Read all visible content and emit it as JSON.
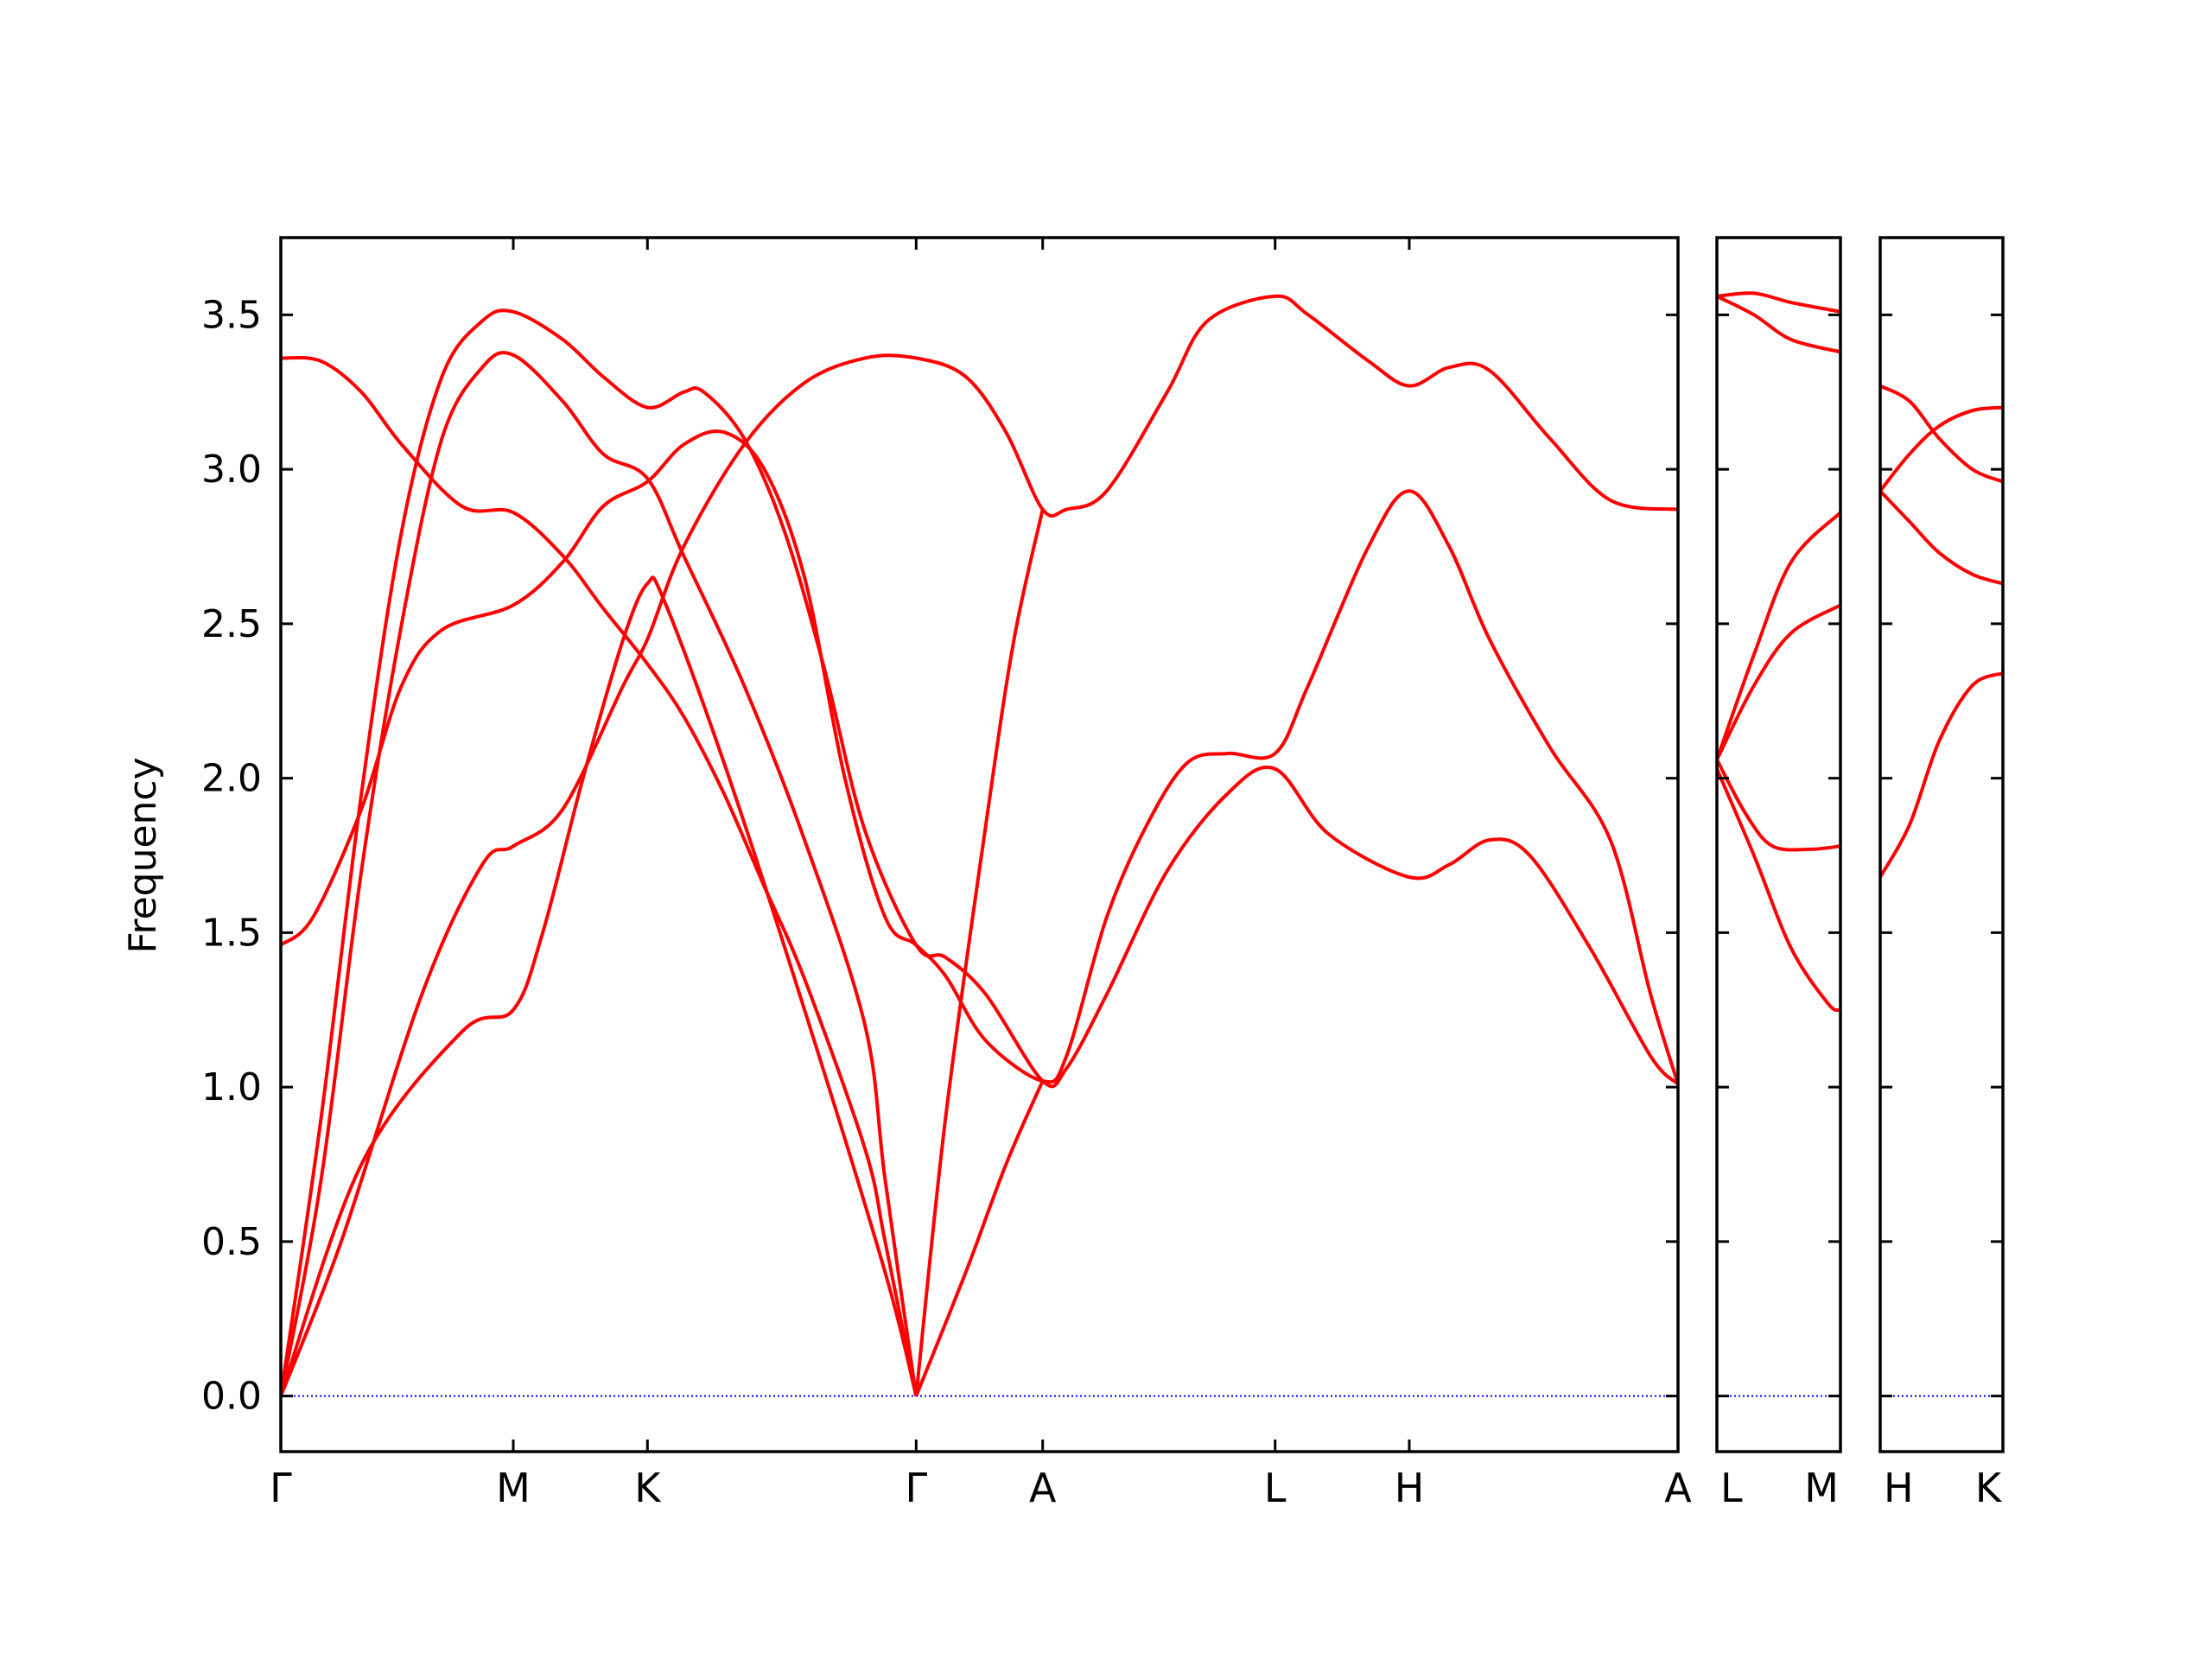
{
  "chart_data": {
    "type": "line",
    "ylabel": "Frequency",
    "ylim": [
      -0.18,
      3.75
    ],
    "y_ticks": [
      "0.0",
      "0.5",
      "1.0",
      "1.5",
      "2.0",
      "2.5",
      "3.0",
      "3.5"
    ],
    "grid": false,
    "legend": "none",
    "colors": {
      "bands": "#ff0000",
      "zero_line": "#0000ff",
      "axes": "#000000"
    },
    "panels": [
      {
        "labels": [
          "Γ",
          "M",
          "K",
          "Γ",
          "A",
          "L",
          "H",
          "A"
        ],
        "x": [
          0,
          0.577,
          0.91,
          1.577,
          1.891,
          2.468,
          2.801,
          3.468
        ],
        "series": [
          {
            "points": [
              [
                0,
                0
              ],
              [
                0.2,
                0.75
              ],
              [
                0.45,
                1.18
              ],
              [
                0.577,
                1.25
              ],
              [
                0.65,
                1.5
              ],
              [
                0.75,
                2.0
              ],
              [
                0.85,
                2.45
              ],
              [
                0.91,
                2.63
              ],
              [
                0.95,
                2.58
              ],
              [
                1.1,
                2.05
              ],
              [
                1.3,
                1.25
              ],
              [
                1.5,
                0.4
              ],
              [
                1.577,
                0
              ]
            ]
          },
          {
            "points": [
              [
                0,
                0
              ],
              [
                0.15,
                0.5
              ],
              [
                0.35,
                1.3
              ],
              [
                0.5,
                1.72
              ],
              [
                0.577,
                1.78
              ],
              [
                0.7,
                1.9
              ],
              [
                0.85,
                2.3
              ],
              [
                0.91,
                2.45
              ],
              [
                1.0,
                2.75
              ],
              [
                1.15,
                3.08
              ],
              [
                1.3,
                3.28
              ],
              [
                1.45,
                3.36
              ],
              [
                1.577,
                3.36
              ],
              [
                1.7,
                3.3
              ],
              [
                1.8,
                3.12
              ],
              [
                1.891,
                2.87
              ],
              [
                1.95,
                2.87
              ],
              [
                2.05,
                2.93
              ],
              [
                2.2,
                3.25
              ],
              [
                2.3,
                3.48
              ],
              [
                2.468,
                3.56
              ],
              [
                2.55,
                3.5
              ],
              [
                2.7,
                3.35
              ],
              [
                2.801,
                3.27
              ],
              [
                2.9,
                3.33
              ],
              [
                3.0,
                3.32
              ],
              [
                3.15,
                3.1
              ],
              [
                3.3,
                2.9
              ],
              [
                3.468,
                2.87
              ]
            ]
          },
          {
            "points": [
              [
                0,
                0
              ],
              [
                0.1,
                0.7
              ],
              [
                0.2,
                1.7
              ],
              [
                0.3,
                2.5
              ],
              [
                0.4,
                3.1
              ],
              [
                0.5,
                3.33
              ],
              [
                0.577,
                3.37
              ],
              [
                0.7,
                3.22
              ],
              [
                0.8,
                3.05
              ],
              [
                0.91,
                2.97
              ],
              [
                1.0,
                2.72
              ],
              [
                1.15,
                2.3
              ],
              [
                1.3,
                1.8
              ],
              [
                1.45,
                1.2
              ],
              [
                1.5,
                0.7
              ],
              [
                1.577,
                0
              ]
            ]
          },
          {
            "points": [
              [
                0,
                0
              ],
              [
                0.1,
                0.9
              ],
              [
                0.2,
                1.95
              ],
              [
                0.3,
                2.8
              ],
              [
                0.4,
                3.3
              ],
              [
                0.5,
                3.48
              ],
              [
                0.577,
                3.51
              ],
              [
                0.7,
                3.42
              ],
              [
                0.8,
                3.3
              ],
              [
                0.91,
                3.2
              ],
              [
                1.0,
                3.25
              ],
              [
                1.05,
                3.25
              ],
              [
                1.15,
                3.1
              ],
              [
                1.25,
                2.8
              ],
              [
                1.35,
                2.35
              ],
              [
                1.45,
                1.83
              ],
              [
                1.577,
                1.46
              ],
              [
                1.65,
                1.42
              ],
              [
                1.75,
                1.3
              ],
              [
                1.891,
                1.02
              ],
              [
                1.95,
                1.06
              ],
              [
                2.05,
                1.3
              ],
              [
                2.2,
                1.7
              ],
              [
                2.35,
                1.95
              ],
              [
                2.468,
                2.03
              ],
              [
                2.6,
                1.82
              ],
              [
                2.8,
                1.68
              ],
              [
                2.9,
                1.72
              ],
              [
                3.0,
                1.8
              ],
              [
                3.1,
                1.75
              ],
              [
                3.25,
                1.45
              ],
              [
                3.4,
                1.1
              ],
              [
                3.468,
                1.01
              ]
            ]
          },
          {
            "points": [
              [
                0,
                1.46
              ],
              [
                0.08,
                1.55
              ],
              [
                0.2,
                1.9
              ],
              [
                0.3,
                2.3
              ],
              [
                0.4,
                2.48
              ],
              [
                0.577,
                2.56
              ],
              [
                0.7,
                2.7
              ],
              [
                0.8,
                2.88
              ],
              [
                0.91,
                2.96
              ],
              [
                1.0,
                3.08
              ],
              [
                1.1,
                3.12
              ],
              [
                1.2,
                3.0
              ],
              [
                1.3,
                2.65
              ],
              [
                1.4,
                2.0
              ],
              [
                1.5,
                1.55
              ],
              [
                1.577,
                1.46
              ],
              [
                1.65,
                1.36
              ],
              [
                1.75,
                1.15
              ],
              [
                1.891,
                1.02
              ],
              [
                1.95,
                1.1
              ],
              [
                2.05,
                1.55
              ],
              [
                2.15,
                1.85
              ],
              [
                2.25,
                2.05
              ],
              [
                2.35,
                2.08
              ],
              [
                2.468,
                2.08
              ],
              [
                2.55,
                2.3
              ],
              [
                2.7,
                2.75
              ],
              [
                2.801,
                2.93
              ],
              [
                2.9,
                2.75
              ],
              [
                3.0,
                2.45
              ],
              [
                3.15,
                2.1
              ],
              [
                3.3,
                1.8
              ],
              [
                3.4,
                1.3
              ],
              [
                3.468,
                1.01
              ]
            ]
          },
          {
            "points": [
              [
                0,
                3.36
              ],
              [
                0.1,
                3.35
              ],
              [
                0.2,
                3.25
              ],
              [
                0.3,
                3.08
              ],
              [
                0.45,
                2.88
              ],
              [
                0.577,
                2.86
              ],
              [
                0.7,
                2.72
              ],
              [
                0.8,
                2.55
              ],
              [
                0.91,
                2.37
              ],
              [
                1.0,
                2.2
              ],
              [
                1.1,
                1.95
              ],
              [
                1.2,
                1.65
              ],
              [
                1.3,
                1.35
              ],
              [
                1.45,
                0.8
              ],
              [
                1.5,
                0.5
              ],
              [
                1.577,
                0
              ]
            ]
          },
          {
            "points": [
              [
                1.577,
                0
              ],
              [
                1.65,
                0.9
              ],
              [
                1.75,
                1.85
              ],
              [
                1.82,
                2.45
              ],
              [
                1.891,
                2.87
              ]
            ]
          },
          {
            "points": [
              [
                1.577,
                0
              ],
              [
                1.7,
                0.4
              ],
              [
                1.8,
                0.75
              ],
              [
                1.891,
                1.02
              ]
            ]
          }
        ]
      },
      {
        "labels": [
          "L",
          "M"
        ],
        "x": [
          0,
          0.333
        ],
        "series": [
          {
            "points": [
              [
                0,
                3.56
              ],
              [
                0.1,
                3.57
              ],
              [
                0.2,
                3.54
              ],
              [
                0.333,
                3.51
              ]
            ]
          },
          {
            "points": [
              [
                0,
                3.56
              ],
              [
                0.1,
                3.5
              ],
              [
                0.2,
                3.42
              ],
              [
                0.333,
                3.38
              ]
            ]
          },
          {
            "points": [
              [
                0,
                2.06
              ],
              [
                0.1,
                2.4
              ],
              [
                0.2,
                2.7
              ],
              [
                0.333,
                2.86
              ]
            ]
          },
          {
            "points": [
              [
                0,
                2.06
              ],
              [
                0.1,
                2.3
              ],
              [
                0.2,
                2.47
              ],
              [
                0.333,
                2.56
              ]
            ]
          },
          {
            "points": [
              [
                0,
                2.06
              ],
              [
                0.08,
                1.88
              ],
              [
                0.15,
                1.78
              ],
              [
                0.25,
                1.77
              ],
              [
                0.333,
                1.78
              ]
            ]
          },
          {
            "points": [
              [
                0,
                2.03
              ],
              [
                0.1,
                1.75
              ],
              [
                0.2,
                1.45
              ],
              [
                0.3,
                1.27
              ],
              [
                0.333,
                1.25
              ]
            ]
          }
        ]
      },
      {
        "labels": [
          "H",
          "K"
        ],
        "x": [
          0,
          0.333
        ],
        "series": [
          {
            "points": [
              [
                0,
                3.27
              ],
              [
                0.08,
                3.22
              ],
              [
                0.16,
                3.1
              ],
              [
                0.25,
                3.0
              ],
              [
                0.333,
                2.96
              ]
            ]
          },
          {
            "points": [
              [
                0,
                2.93
              ],
              [
                0.08,
                3.05
              ],
              [
                0.16,
                3.14
              ],
              [
                0.25,
                3.19
              ],
              [
                0.333,
                3.2
              ]
            ]
          },
          {
            "points": [
              [
                0,
                2.93
              ],
              [
                0.08,
                2.83
              ],
              [
                0.16,
                2.73
              ],
              [
                0.25,
                2.66
              ],
              [
                0.333,
                2.63
              ]
            ]
          },
          {
            "points": [
              [
                0,
                1.68
              ],
              [
                0.08,
                1.85
              ],
              [
                0.16,
                2.12
              ],
              [
                0.25,
                2.3
              ],
              [
                0.333,
                2.34
              ]
            ]
          }
        ]
      }
    ]
  }
}
